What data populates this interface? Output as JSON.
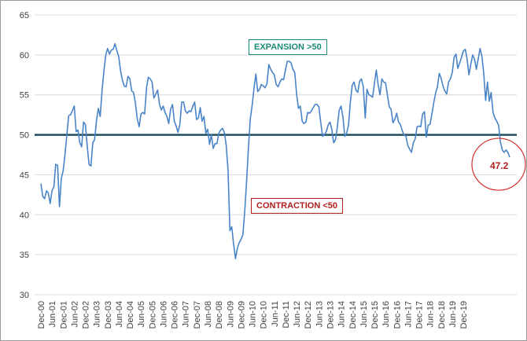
{
  "chart_data": {
    "type": "line",
    "ylim": [
      30,
      65
    ],
    "yticks": [
      30,
      35,
      40,
      45,
      50,
      55,
      60,
      65
    ],
    "x_tick_labels": [
      "Dec-00",
      "Jun-01",
      "Dec-01",
      "Jun-02",
      "Dec-02",
      "Jun-03",
      "Dec-03",
      "Jun-04",
      "Dec-04",
      "Jun-05",
      "Dec-05",
      "Jun-06",
      "Dec-06",
      "Jun-07",
      "Dec-07",
      "Jun-08",
      "Dec-08",
      "Jun-09",
      "Dec-09",
      "Jun-10",
      "Dec-10",
      "Jun-11",
      "Dec-11",
      "Jun-12",
      "Dec-12",
      "Jun-13",
      "Dec-13",
      "Jun-14",
      "Dec-14",
      "Jun-15",
      "Dec-15",
      "Jun-16",
      "Dec-16",
      "Jun-17",
      "Dec-17",
      "Jun-18",
      "Dec-18",
      "Jun-19",
      "Dec-19"
    ],
    "reference_line": 50,
    "series": [
      {
        "values": [
          43.9,
          42.3,
          42.0,
          43.0,
          42.7,
          41.4,
          43.0,
          43.5,
          46.3,
          46.2,
          41.0,
          44.5,
          45.5,
          47.5,
          50.0,
          52.4,
          52.5,
          53.0,
          53.6,
          50.4,
          50.6,
          49.0,
          48.5,
          51.6,
          51.3,
          48.6,
          46.3,
          46.1,
          49.0,
          49.4,
          51.8,
          53.3,
          52.3,
          55.5,
          58.0,
          60.0,
          60.8,
          60.1,
          60.6,
          60.7,
          61.4,
          60.5,
          59.8,
          58.0,
          56.8,
          56.1,
          56.0,
          57.3,
          57.0,
          55.5,
          55.3,
          54.0,
          52.0,
          51.0,
          52.6,
          52.8,
          52.6,
          55.9,
          57.2,
          57.0,
          56.6,
          54.6,
          55.1,
          55.6,
          53.8,
          53.1,
          53.6,
          52.8,
          52.3,
          51.4,
          53.2,
          53.8,
          51.7,
          51.1,
          50.3,
          51.3,
          54.1,
          54.1,
          53.0,
          52.7,
          53.0,
          52.9,
          53.6,
          54.1,
          51.9,
          52.1,
          53.4,
          51.7,
          52.3,
          50.2,
          50.7,
          48.8,
          50.0,
          48.3,
          48.9,
          48.9,
          50.2,
          50.6,
          50.8,
          50.3,
          48.7,
          45.6,
          38.0,
          38.5,
          36.3,
          34.5,
          35.8,
          36.5,
          36.9,
          37.5,
          40.4,
          44.2,
          48.3,
          52.0,
          53.7,
          55.8,
          57.6,
          55.4,
          55.7,
          56.3,
          56.1,
          55.9,
          56.4,
          58.8,
          58.2,
          57.8,
          57.5,
          56.3,
          56.0,
          56.6,
          57.0,
          56.9,
          58.2,
          59.2,
          59.2,
          59.0,
          58.2,
          57.8,
          55.1,
          53.3,
          53.6,
          51.7,
          51.4,
          51.6,
          52.8,
          52.7,
          53.0,
          53.4,
          53.8,
          53.8,
          53.5,
          51.6,
          49.8,
          50.0,
          50.4,
          51.2,
          51.6,
          50.7,
          49.0,
          49.4,
          51.0,
          53.1,
          53.6,
          52.2,
          49.8,
          50.2,
          51.2,
          54.1,
          56.2,
          56.6,
          55.6,
          55.3,
          56.7,
          57.0,
          56.0,
          52.1,
          55.7,
          55.0,
          54.9,
          54.7,
          56.4,
          58.1,
          56.3,
          55.0,
          57.0,
          56.6,
          56.5,
          55.0,
          53.5,
          53.2,
          51.5,
          51.9,
          52.7,
          51.6,
          51.3,
          50.5,
          50.0,
          49.8,
          48.7,
          48.2,
          47.8,
          49.0,
          49.5,
          51.0,
          51.1,
          51.0,
          52.6,
          52.9,
          49.7,
          51.2,
          51.3,
          52.6,
          54.0,
          55.2,
          56.0,
          57.7,
          57.1,
          56.1,
          55.5,
          55.1,
          56.6,
          57.0,
          57.8,
          59.7,
          60.1,
          58.3,
          59.0,
          59.7,
          60.5,
          60.7,
          59.5,
          57.5,
          58.8,
          60.0,
          59.5,
          58.2,
          59.5,
          60.8,
          59.8,
          57.7,
          54.3,
          56.6,
          54.2,
          55.3,
          52.8,
          52.1,
          51.7,
          51.2,
          49.1,
          48.1,
          47.8,
          48.1,
          47.8,
          47.2
        ]
      }
    ],
    "annotations": [
      {
        "text": "EXPANSION >50"
      },
      {
        "text": "CONTRACTION <50"
      },
      {
        "text": "47.2"
      }
    ]
  }
}
